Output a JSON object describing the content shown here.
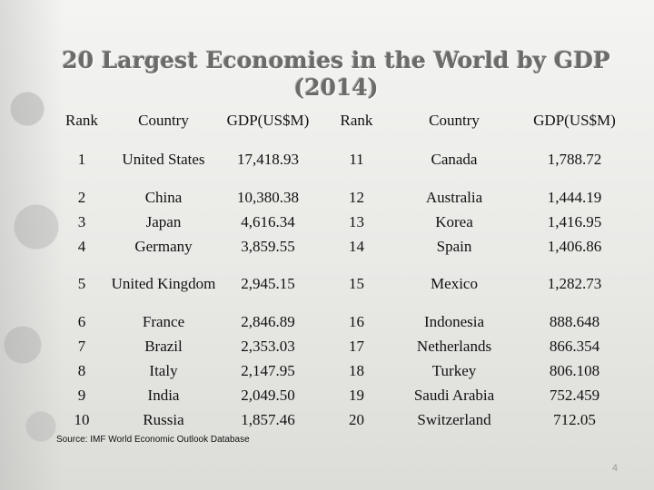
{
  "title": "20 Largest Economies in the World by GDP (2014)",
  "headers": [
    "Rank",
    "Country",
    "GDP(US$M)",
    "Rank",
    "Country",
    "GDP(US$M)"
  ],
  "rows": [
    [
      "1",
      "United States",
      "17,418.93",
      "11",
      "Canada",
      "1,788.72"
    ],
    [
      "2",
      "China",
      "10,380.38",
      "12",
      "Australia",
      "1,444.19"
    ],
    [
      "3",
      "Japan",
      "4,616.34",
      "13",
      "Korea",
      "1,416.95"
    ],
    [
      "4",
      "Germany",
      "3,859.55",
      "14",
      "Spain",
      "1,406.86"
    ],
    [
      "5",
      "United Kingdom",
      "2,945.15",
      "15",
      "Mexico",
      "1,282.73"
    ],
    [
      "6",
      "France",
      "2,846.89",
      "16",
      "Indonesia",
      "888.648"
    ],
    [
      "7",
      "Brazil",
      "2,353.03",
      "17",
      "Netherlands",
      "866.354"
    ],
    [
      "8",
      "Italy",
      "2,147.95",
      "18",
      "Turkey",
      "806.108"
    ],
    [
      "9",
      "India",
      "2,049.50",
      "19",
      "Saudi Arabia",
      "752.459"
    ],
    [
      "10",
      "Russia",
      "1,857.46",
      "20",
      "Switzerland",
      "712.05"
    ]
  ],
  "source": "Source: IMF World Economic Outlook Database",
  "slide_number": "4"
}
